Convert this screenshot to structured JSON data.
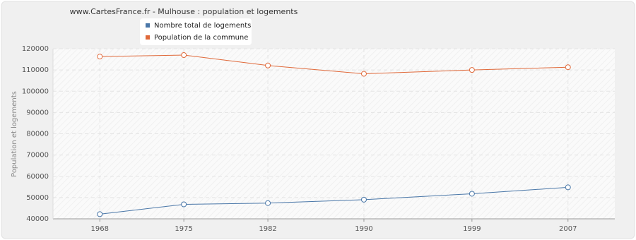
{
  "chart_data": {
    "type": "line",
    "title": "www.CartesFrance.fr - Mulhouse : population et logements",
    "y_label": "Population et logements",
    "x": [
      1968,
      1975,
      1982,
      1990,
      1999,
      2007
    ],
    "series": [
      {
        "name": "Nombre total de logements",
        "color": "#4a77a8",
        "values": [
          42200,
          46800,
          47400,
          49000,
          51800,
          54800
        ]
      },
      {
        "name": "Population de la commune",
        "color": "#e0693a",
        "values": [
          116300,
          117000,
          112100,
          108200,
          110000,
          111300
        ]
      }
    ],
    "xlim": [
      1964.1,
      2010.9
    ],
    "xticks": [
      1968,
      1975,
      1982,
      1990,
      1999,
      2007
    ],
    "ylim": [
      40000,
      120000
    ],
    "yticks": [
      40000,
      50000,
      60000,
      70000,
      80000,
      90000,
      100000,
      110000,
      120000
    ],
    "grid": true
  }
}
